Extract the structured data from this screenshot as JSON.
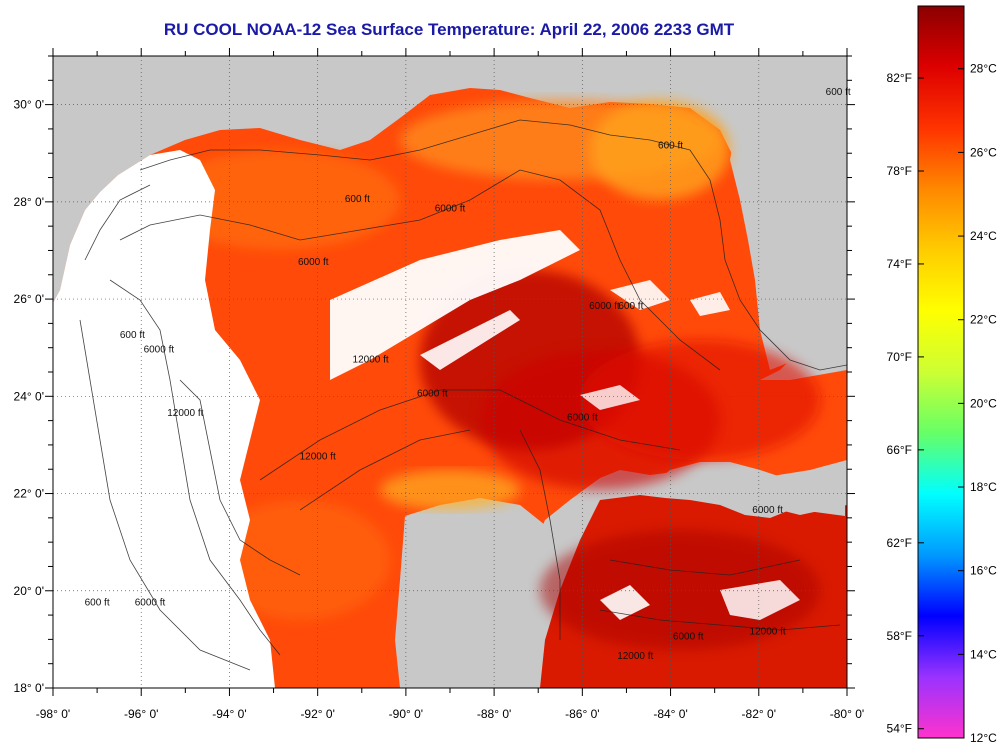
{
  "title": "RU COOL  NOAA-12  Sea Surface Temperature:  April 22, 2006 2233 GMT",
  "map": {
    "lon_range": [
      -98,
      -80
    ],
    "lat_range": [
      18,
      31
    ],
    "lon_ticks": [
      "-98° 0'",
      "-96° 0'",
      "-94° 0'",
      "-92° 0'",
      "-90° 0'",
      "-88° 0'",
      "-86° 0'",
      "-84° 0'",
      "-82° 0'",
      "-80° 0'"
    ],
    "lat_ticks": [
      "18° 0'",
      "20° 0'",
      "22° 0'",
      "24° 0'",
      "26° 0'",
      "28° 0'",
      "30° 0'"
    ],
    "land_color": "#c8c8c8",
    "no_data_color": "#ffffff",
    "contour_labels": [
      {
        "text": "600 ft",
        "lon": -91.1,
        "lat": 28.0
      },
      {
        "text": "600 ft",
        "lon": -84.0,
        "lat": 29.1
      },
      {
        "text": "600 ft",
        "lon": -80.2,
        "lat": 30.2
      },
      {
        "text": "600 ft",
        "lon": -96.2,
        "lat": 25.2
      },
      {
        "text": "600 ft",
        "lon": -84.9,
        "lat": 25.8
      },
      {
        "text": "600 ft",
        "lon": -97.0,
        "lat": 19.7
      },
      {
        "text": "6000 ft",
        "lon": -92.1,
        "lat": 26.7
      },
      {
        "text": "6000 ft",
        "lon": -95.6,
        "lat": 24.9
      },
      {
        "text": "6000 ft",
        "lon": -89.0,
        "lat": 27.8
      },
      {
        "text": "6000 ft",
        "lon": -85.5,
        "lat": 25.8
      },
      {
        "text": "6000 ft",
        "lon": -89.4,
        "lat": 24.0
      },
      {
        "text": "6000 ft",
        "lon": -86.0,
        "lat": 23.5
      },
      {
        "text": "6000 ft",
        "lon": -95.8,
        "lat": 19.7
      },
      {
        "text": "6000 ft",
        "lon": -81.8,
        "lat": 21.6
      },
      {
        "text": "6000 ft",
        "lon": -83.6,
        "lat": 19.0
      },
      {
        "text": "12000 ft",
        "lon": -90.8,
        "lat": 24.7
      },
      {
        "text": "12000 ft",
        "lon": -95.0,
        "lat": 23.6
      },
      {
        "text": "12000 ft",
        "lon": -92.0,
        "lat": 22.7
      },
      {
        "text": "12000 ft",
        "lon": -84.8,
        "lat": 18.6
      },
      {
        "text": "12000 ft",
        "lon": -81.8,
        "lat": 19.1
      }
    ]
  },
  "colorbar": {
    "fahrenheit_labels": [
      "82°F",
      "78°F",
      "74°F",
      "70°F",
      "66°F",
      "62°F",
      "58°F",
      "54°F"
    ],
    "celsius_labels": [
      "28°C",
      "26°C",
      "24°C",
      "22°C",
      "20°C",
      "18°C",
      "16°C",
      "14°C",
      "12°C"
    ],
    "celsius_range": [
      12,
      29.5
    ],
    "stops": [
      "#ff33cc",
      "#9933ff",
      "#0000ff",
      "#0099ff",
      "#00ffff",
      "#66ff66",
      "#ccff33",
      "#ffff00",
      "#ffcc00",
      "#ff8800",
      "#ff3300",
      "#dd0000",
      "#8b0000"
    ]
  }
}
